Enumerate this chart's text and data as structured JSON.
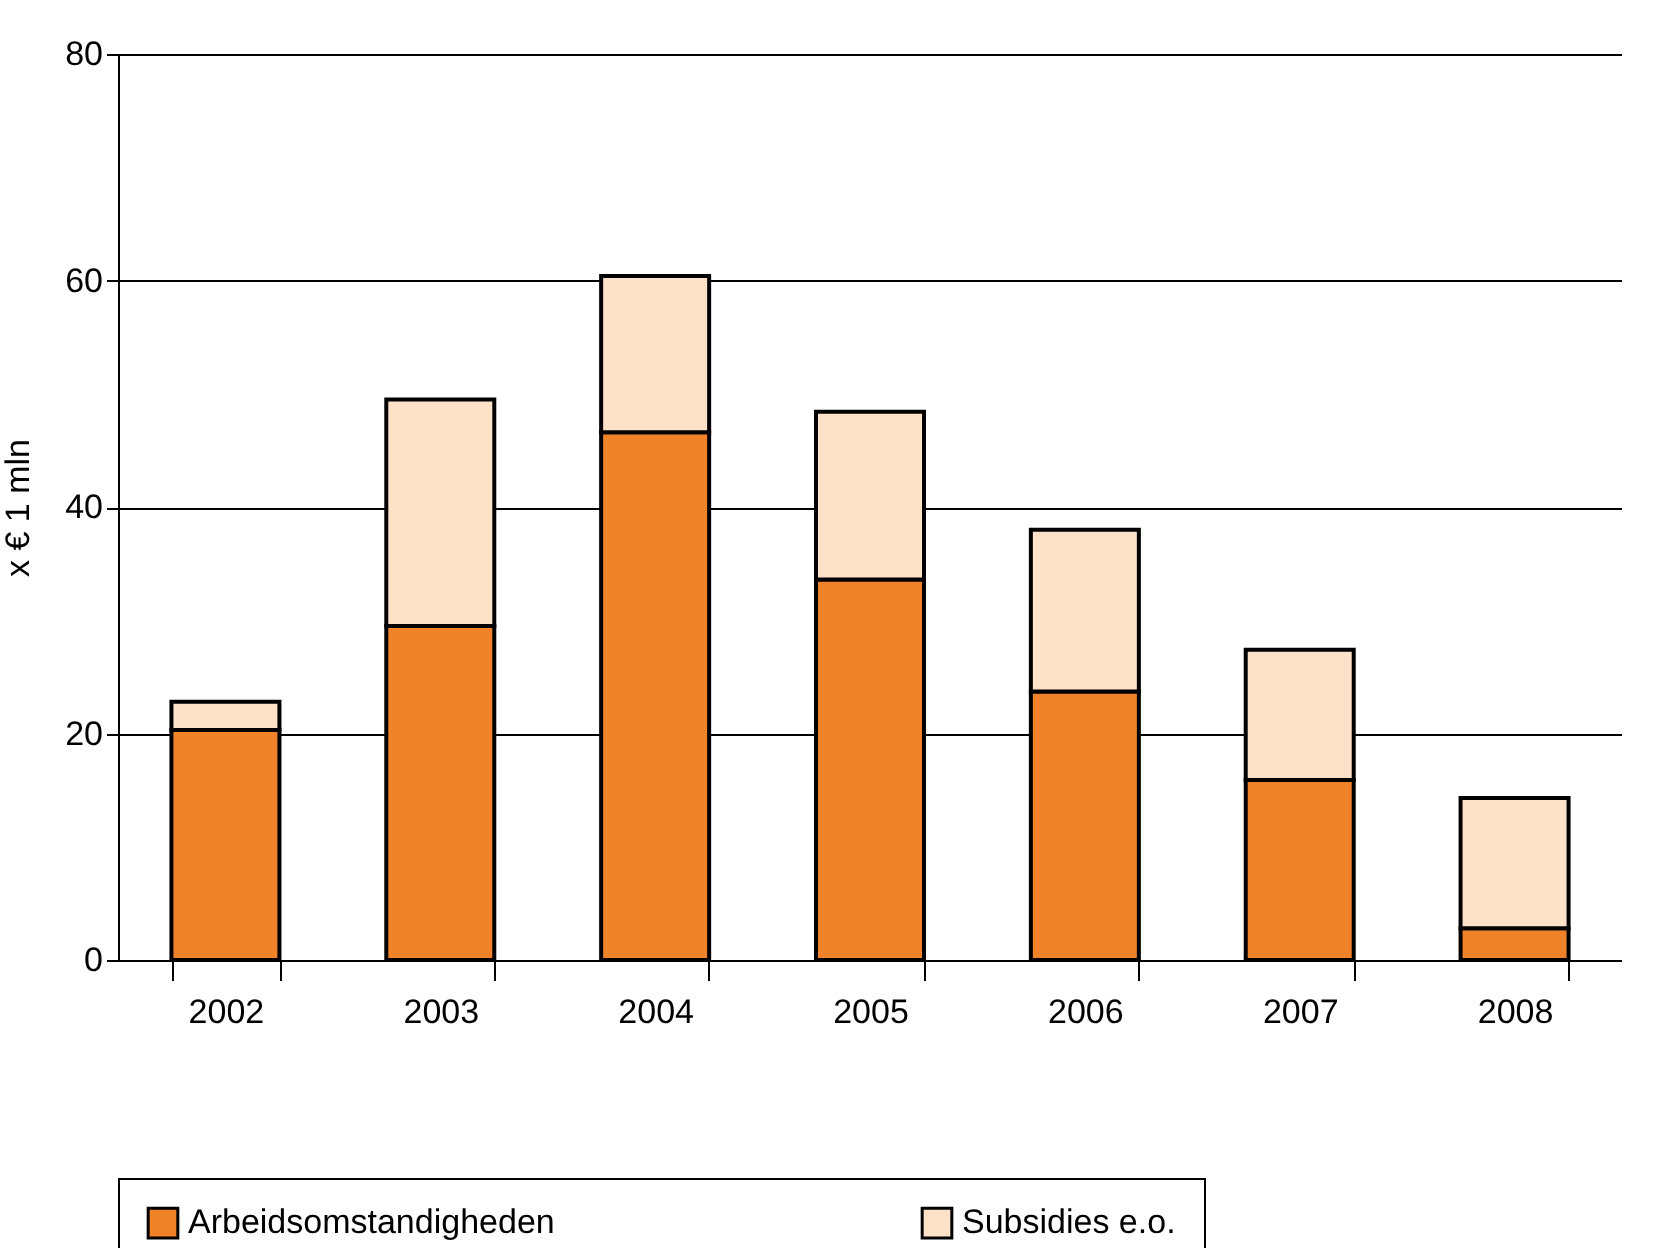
{
  "chart_data": {
    "type": "bar",
    "stacked": true,
    "ylabel": "x € 1 mln",
    "categories": [
      "2002",
      "2003",
      "2004",
      "2005",
      "2006",
      "2007",
      "2008"
    ],
    "series": [
      {
        "name": "Arbeidsomstandigheden",
        "color": "#f0832a",
        "values": [
          20.3,
          29.5,
          46.6,
          33.6,
          23.7,
          15.9,
          2.8
        ]
      },
      {
        "name": "Subsidies e.o.",
        "color": "#fde1c9",
        "values": [
          2.5,
          20.0,
          13.8,
          14.8,
          14.3,
          11.5,
          11.5
        ]
      }
    ],
    "ylim": [
      0,
      80
    ],
    "yticks": [
      0,
      20,
      40,
      60,
      80
    ],
    "grid": "y",
    "legend": "bottom"
  }
}
